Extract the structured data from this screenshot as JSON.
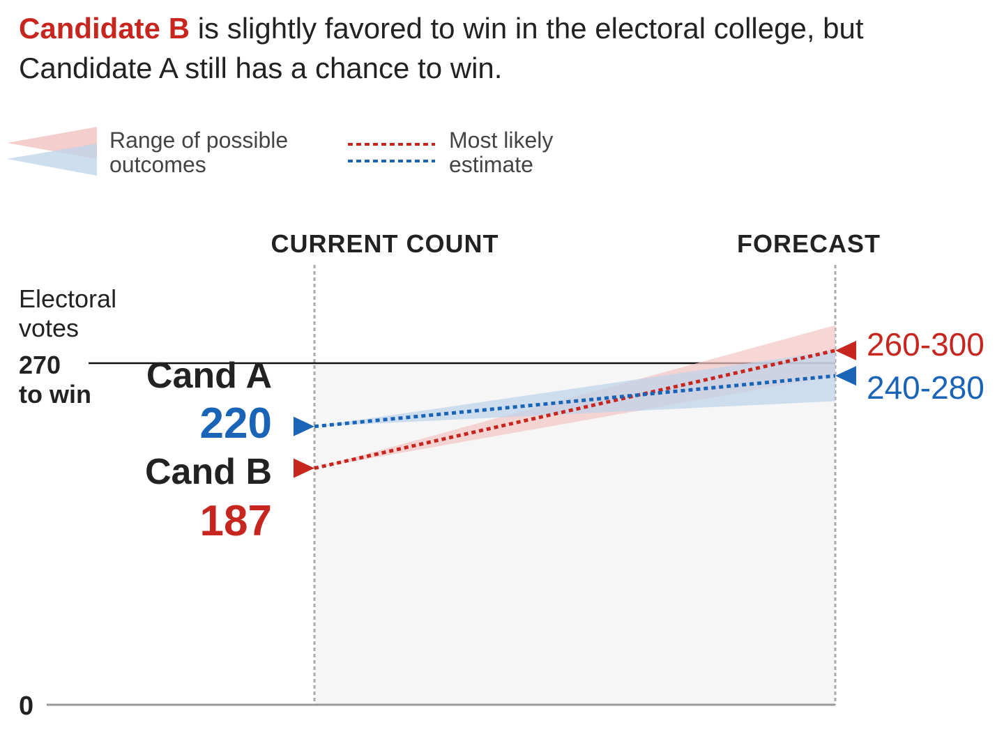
{
  "headline": {
    "highlight": "Candidate B",
    "rest": " is slightly favored to win in the electoral college, but Candidate A still has a chance to win."
  },
  "legend": {
    "range_line1": "Range of possible",
    "range_line2": "outcomes",
    "estimate_line1": "Most likely",
    "estimate_line2": "estimate"
  },
  "colors": {
    "candidate_a": "#1a64b8",
    "candidate_b": "#c7261f",
    "range_a": "#bcd3ea",
    "range_b": "#f2c6c4",
    "shade": "#f6f6f6"
  },
  "chart_data": {
    "type": "line",
    "x_categories": [
      "CURRENT COUNT",
      "FORECAST"
    ],
    "ylabel_line1": "Electoral",
    "ylabel_line2": "votes",
    "ylim": [
      0,
      270
    ],
    "y_ticks": [
      {
        "value": 0,
        "label": "0"
      },
      {
        "value": 270,
        "label_line1": "270",
        "label_line2": "to win"
      }
    ],
    "threshold": 270,
    "series": [
      {
        "name": "Cand A",
        "key": "a",
        "current": 220,
        "current_label": "220",
        "forecast_estimate": 260,
        "forecast_range": [
          240,
          280
        ],
        "forecast_label": "240-280"
      },
      {
        "name": "Cand B",
        "key": "b",
        "current": 187,
        "current_label": "187",
        "forecast_estimate": 280,
        "forecast_range": [
          260,
          300
        ],
        "forecast_label": "260-300"
      }
    ]
  }
}
